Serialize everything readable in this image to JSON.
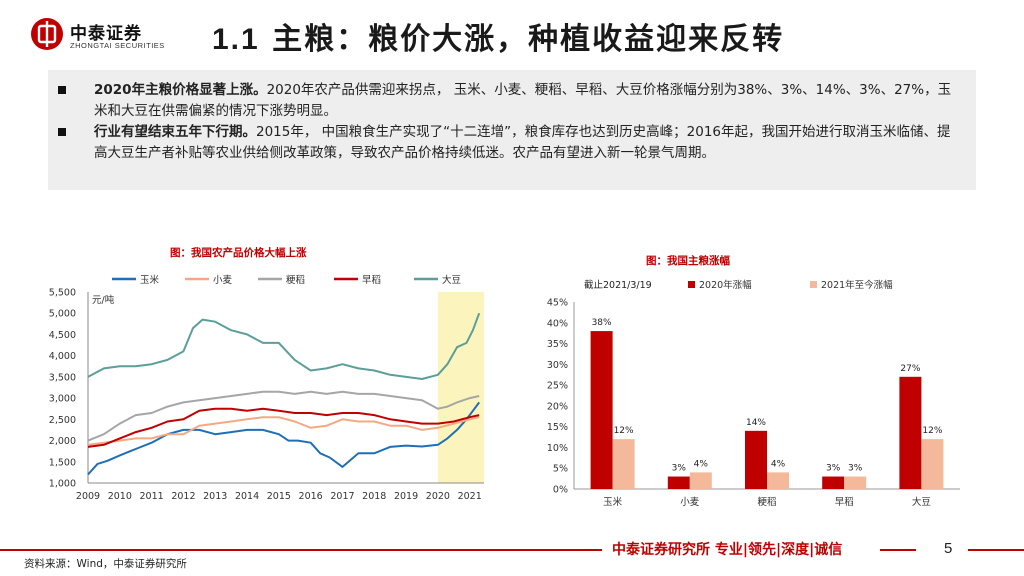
{
  "header": {
    "logo_cn": "中泰证券",
    "logo_en": "ZHONGTAI SECURITIES",
    "title_num": "1.1",
    "title_text": "主粮：粮价大涨，种植收益迎来反转"
  },
  "summary": {
    "bullet1_bold": "2020年主粮价格显著上涨。",
    "bullet1_text": "2020年农产品供需迎来拐点， 玉米、小麦、粳稻、早稻、大豆价格涨幅分别为38%、3%、14%、3%、27%，玉米和大豆在供需偏紧的情况下涨势明显。",
    "bullet2_bold": "行业有望结束五年下行期。",
    "bullet2_text": "2015年， 中国粮食生产实现了“十二连增”，粮食库存也达到历史高峰；2016年起，我国开始进行取消玉米临储、提高大豆生产者补贴等农业供给侧改革政策，导致农产品价格持续低迷。农产品有望进入新一轮景气周期。"
  },
  "colors": {
    "brand_red": "#c00000",
    "corn": "#1f6fb8",
    "wheat": "#f4a983",
    "japonica": "#a6a6a6",
    "early_rice": "#c00000",
    "soybean": "#5b9e9a",
    "highlight": "#fbf5bd",
    "bar_2020": "#c00000",
    "bar_2021": "#f4b89a"
  },
  "chart_data": [
    {
      "type": "line",
      "title": "图：我国农产品价格大幅上涨",
      "unit_label": "元/吨",
      "ylim": [
        1000,
        5500
      ],
      "y_ticks": [
        "1,000",
        "1,500",
        "2,000",
        "2,500",
        "3,000",
        "3,500",
        "4,000",
        "4,500",
        "5,000",
        "5,500"
      ],
      "y_tick_values": [
        1000,
        1500,
        2000,
        2500,
        3000,
        3500,
        4000,
        4500,
        5000,
        5500
      ],
      "x_ticks": [
        "2009",
        "2010",
        "2011",
        "2012",
        "2013",
        "2014",
        "2015",
        "2016",
        "2017",
        "2018",
        "2019",
        "2020",
        "2021"
      ],
      "xlim": [
        2009,
        2021.45
      ],
      "highlight_range": [
        2020,
        2021.45
      ],
      "legend_position": "top",
      "series": [
        {
          "name": "玉米",
          "color_key": "corn",
          "x": [
            2009,
            2009.3,
            2009.6,
            2010,
            2010.5,
            2011,
            2011.5,
            2012,
            2012.5,
            2013,
            2013.5,
            2014,
            2014.5,
            2015,
            2015.3,
            2015.6,
            2016,
            2016.3,
            2016.6,
            2017,
            2017.5,
            2018,
            2018.5,
            2019,
            2019.5,
            2020,
            2020.3,
            2020.6,
            2020.9,
            2021.1,
            2021.3
          ],
          "y": [
            1200,
            1450,
            1520,
            1650,
            1800,
            1950,
            2150,
            2250,
            2250,
            2150,
            2200,
            2250,
            2250,
            2150,
            2000,
            2000,
            1950,
            1700,
            1600,
            1380,
            1700,
            1700,
            1850,
            1880,
            1860,
            1900,
            2050,
            2250,
            2500,
            2700,
            2900
          ]
        },
        {
          "name": "小麦",
          "color_key": "wheat",
          "x": [
            2009,
            2009.5,
            2010,
            2010.5,
            2011,
            2011.5,
            2012,
            2012.5,
            2013,
            2013.5,
            2014,
            2014.5,
            2015,
            2015.5,
            2016,
            2016.5,
            2017,
            2017.5,
            2018,
            2018.5,
            2019,
            2019.5,
            2020,
            2020.5,
            2021,
            2021.3
          ],
          "y": [
            1900,
            1950,
            2000,
            2050,
            2050,
            2150,
            2150,
            2350,
            2400,
            2450,
            2500,
            2550,
            2550,
            2450,
            2300,
            2350,
            2500,
            2450,
            2450,
            2350,
            2350,
            2250,
            2300,
            2400,
            2500,
            2550
          ]
        },
        {
          "name": "粳稻",
          "color_key": "japonica",
          "x": [
            2009,
            2009.5,
            2010,
            2010.5,
            2011,
            2011.5,
            2012,
            2012.5,
            2013,
            2013.5,
            2014,
            2014.5,
            2015,
            2015.5,
            2016,
            2016.5,
            2017,
            2017.5,
            2018,
            2018.5,
            2019,
            2019.5,
            2020,
            2020.3,
            2020.6,
            2021,
            2021.3
          ],
          "y": [
            2000,
            2150,
            2400,
            2600,
            2650,
            2800,
            2900,
            2950,
            3000,
            3050,
            3100,
            3150,
            3150,
            3100,
            3150,
            3100,
            3150,
            3100,
            3100,
            3050,
            3000,
            2950,
            2750,
            2800,
            2900,
            3000,
            3050
          ]
        },
        {
          "name": "早稻",
          "color_key": "early_rice",
          "x": [
            2009,
            2009.5,
            2010,
            2010.5,
            2011,
            2011.5,
            2012,
            2012.5,
            2013,
            2013.5,
            2014,
            2014.5,
            2015,
            2015.5,
            2016,
            2016.5,
            2017,
            2017.5,
            2018,
            2018.5,
            2019,
            2019.5,
            2020,
            2020.5,
            2021,
            2021.3
          ],
          "y": [
            1850,
            1900,
            2050,
            2200,
            2300,
            2450,
            2500,
            2700,
            2750,
            2750,
            2700,
            2750,
            2700,
            2650,
            2650,
            2600,
            2650,
            2650,
            2600,
            2500,
            2450,
            2400,
            2400,
            2450,
            2550,
            2600
          ]
        },
        {
          "name": "大豆",
          "color_key": "soybean",
          "x": [
            2009,
            2009.5,
            2010,
            2010.5,
            2011,
            2011.5,
            2012,
            2012.3,
            2012.6,
            2013,
            2013.5,
            2014,
            2014.5,
            2015,
            2015.5,
            2016,
            2016.5,
            2017,
            2017.5,
            2018,
            2018.5,
            2019,
            2019.5,
            2020,
            2020.3,
            2020.6,
            2020.9,
            2021.1,
            2021.3
          ],
          "y": [
            3500,
            3700,
            3750,
            3750,
            3800,
            3900,
            4100,
            4650,
            4850,
            4800,
            4600,
            4500,
            4300,
            4300,
            3900,
            3650,
            3700,
            3800,
            3700,
            3650,
            3550,
            3500,
            3450,
            3550,
            3800,
            4200,
            4300,
            4600,
            5000
          ]
        }
      ]
    },
    {
      "type": "bar",
      "title": "图：我国主粮涨幅",
      "note": "截止2021/3/19",
      "legend_position": "top",
      "ylim": [
        0,
        45
      ],
      "y_ticks": [
        "0%",
        "5%",
        "10%",
        "15%",
        "20%",
        "25%",
        "30%",
        "35%",
        "40%",
        "45%"
      ],
      "y_tick_values": [
        0,
        5,
        10,
        15,
        20,
        25,
        30,
        35,
        40,
        45
      ],
      "categories": [
        "玉米",
        "小麦",
        "粳稻",
        "早稻",
        "大豆"
      ],
      "series": [
        {
          "name": "2020年涨幅",
          "color_key": "bar_2020",
          "values": [
            38,
            3,
            14,
            3,
            27
          ],
          "labels": [
            "38%",
            "3%",
            "14%",
            "3%",
            "27%"
          ]
        },
        {
          "name": "2021年至今涨幅",
          "color_key": "bar_2021",
          "values": [
            12,
            4,
            4,
            3,
            12
          ],
          "labels": [
            "12%",
            "4%",
            "4%",
            "3%",
            "12%"
          ]
        }
      ]
    }
  ],
  "footer": {
    "slogan": "中泰证券研究所 专业|领先|深度|诚信",
    "page": "5",
    "source": "资料来源：Wind，中泰证券研究所"
  }
}
